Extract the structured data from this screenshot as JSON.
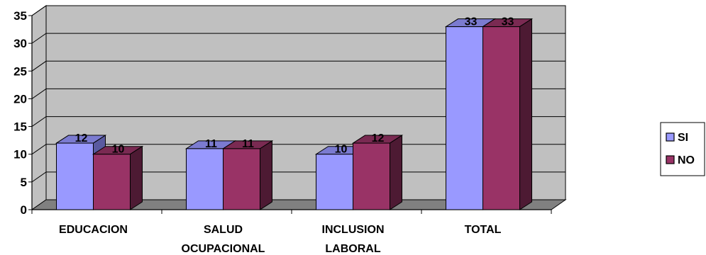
{
  "chart_data": {
    "type": "bar",
    "style": "3d-clustered-column",
    "categories": [
      [
        "EDUCACION"
      ],
      [
        "SALUD",
        "OCUPACIONAL"
      ],
      [
        "INCLUSION",
        "LABORAL"
      ],
      [
        "TOTAL"
      ]
    ],
    "series": [
      {
        "name": "SI",
        "values": [
          12,
          11,
          10,
          33
        ],
        "color": "#9999ff",
        "top_color": "#7b7bd0",
        "side_color": "#5a5aa0"
      },
      {
        "name": "NO",
        "values": [
          10,
          11,
          12,
          33
        ],
        "color": "#993366",
        "top_color": "#7a2a52",
        "side_color": "#4d1a33"
      }
    ],
    "ylim": [
      0,
      35
    ],
    "yticks": [
      0,
      5,
      10,
      15,
      20,
      25,
      30,
      35
    ],
    "data_labels": true,
    "grid": true,
    "wall_color": "#c0c0c0",
    "floor_color": "#808080",
    "legend_position": "right"
  }
}
